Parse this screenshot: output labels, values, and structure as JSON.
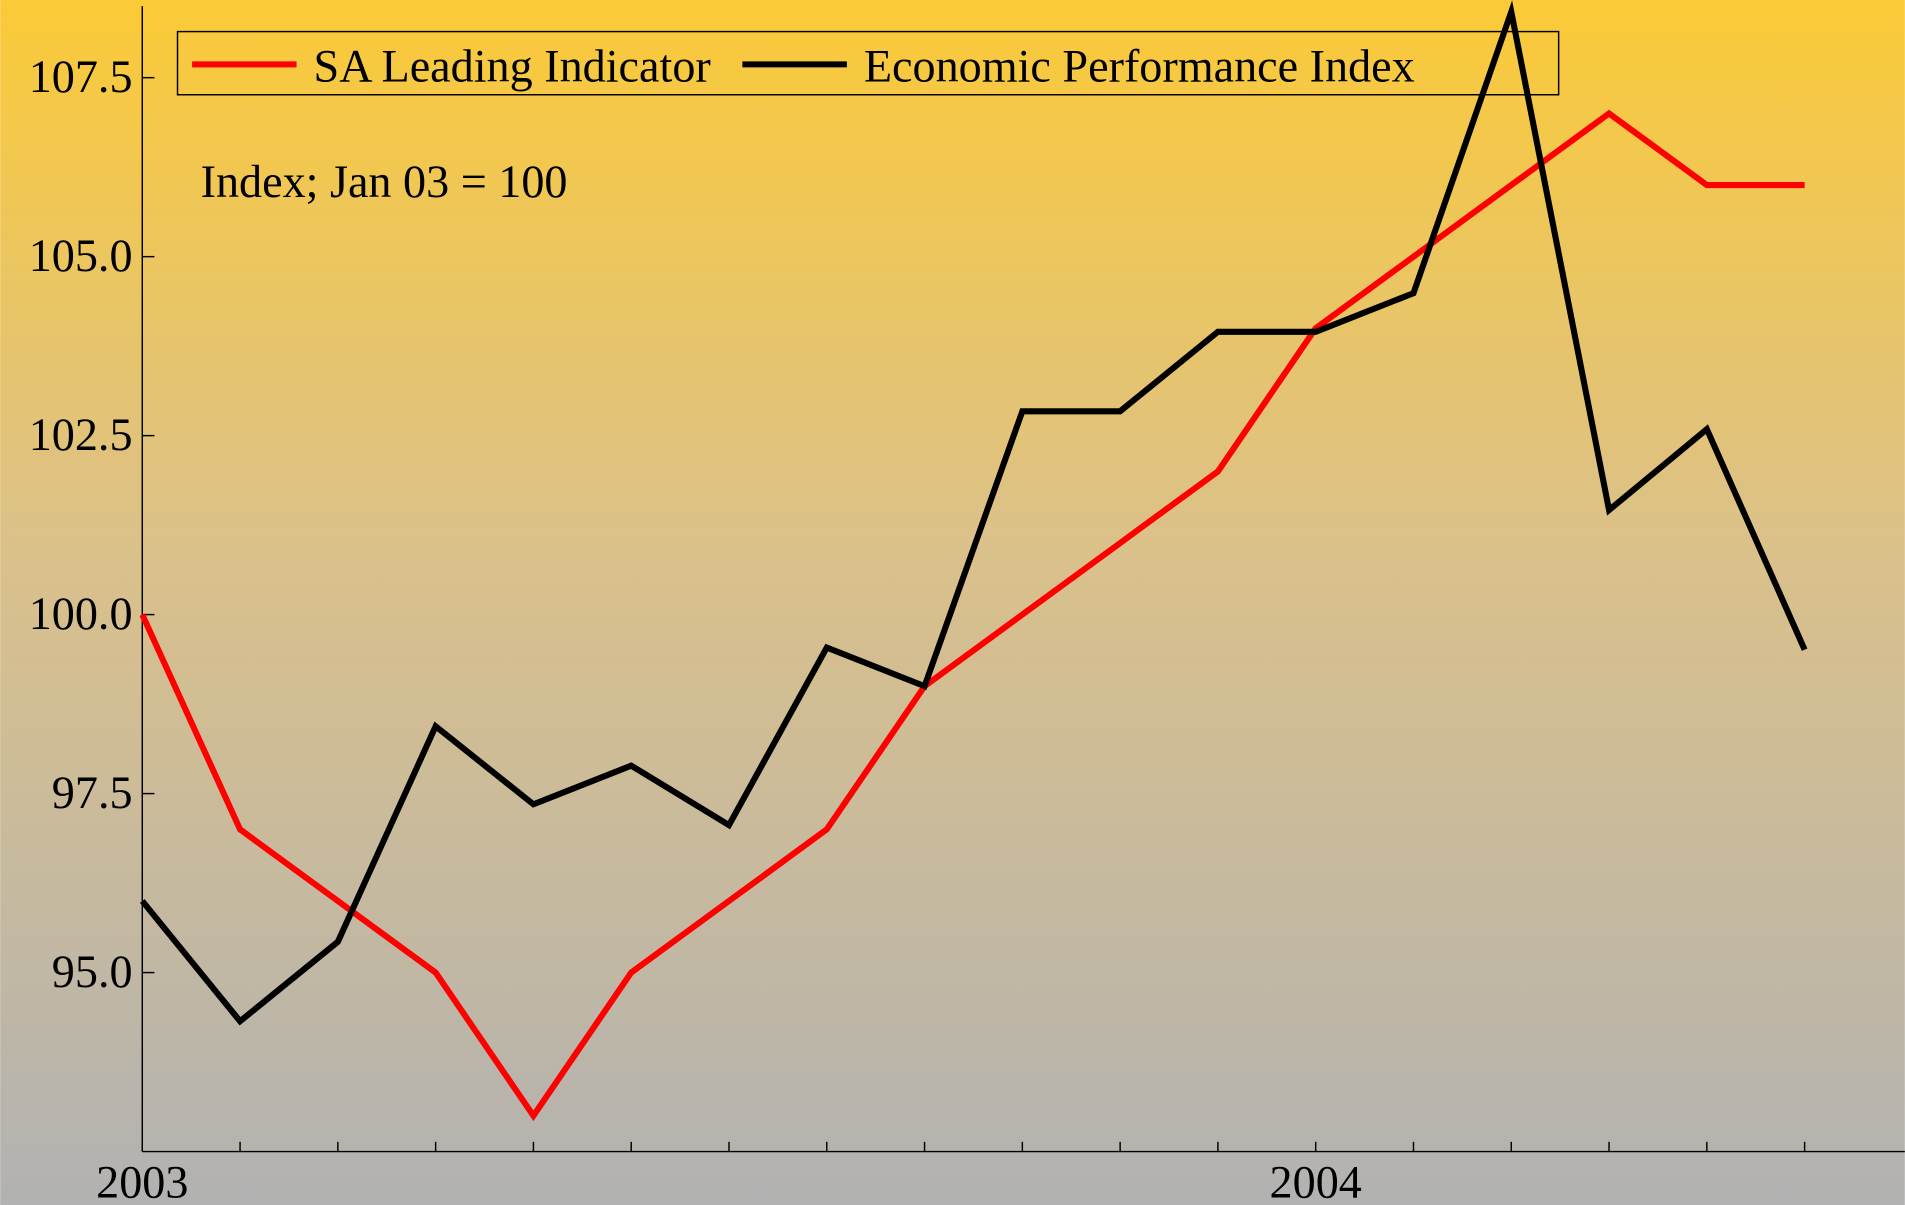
{
  "chart_data": {
    "type": "line",
    "annotation": "Index; Jan 03 = 100",
    "categories": [
      "2003",
      null,
      null,
      null,
      null,
      null,
      null,
      null,
      null,
      null,
      null,
      null,
      "2004",
      null,
      null,
      null,
      null,
      null
    ],
    "series": [
      {
        "name": "SA Leading Indicator",
        "color": "#ff0000",
        "values": [
          100,
          97,
          96,
          95,
          93,
          95,
          96,
          97,
          99,
          100,
          101,
          102,
          104,
          105,
          106,
          107,
          106,
          106
        ]
      },
      {
        "name": "Economic Performance Index",
        "color": "#000000",
        "values": [
          96,
          94.32,
          95.43,
          98.44,
          97.35,
          97.89,
          97.06,
          99.54,
          99.0,
          102.84,
          102.84,
          103.95,
          103.95,
          104.49,
          108.42,
          101.46,
          102.59,
          99.51
        ]
      }
    ],
    "ylim": [
      92.5,
      108.5
    ],
    "yticks": [
      {
        "value": 95,
        "label": "95.0"
      },
      97.5,
      {
        "value": 100,
        "label": "100.0"
      },
      102.5,
      {
        "value": 105,
        "label": "105.0"
      },
      107.5
    ],
    "legend": "top-left"
  }
}
